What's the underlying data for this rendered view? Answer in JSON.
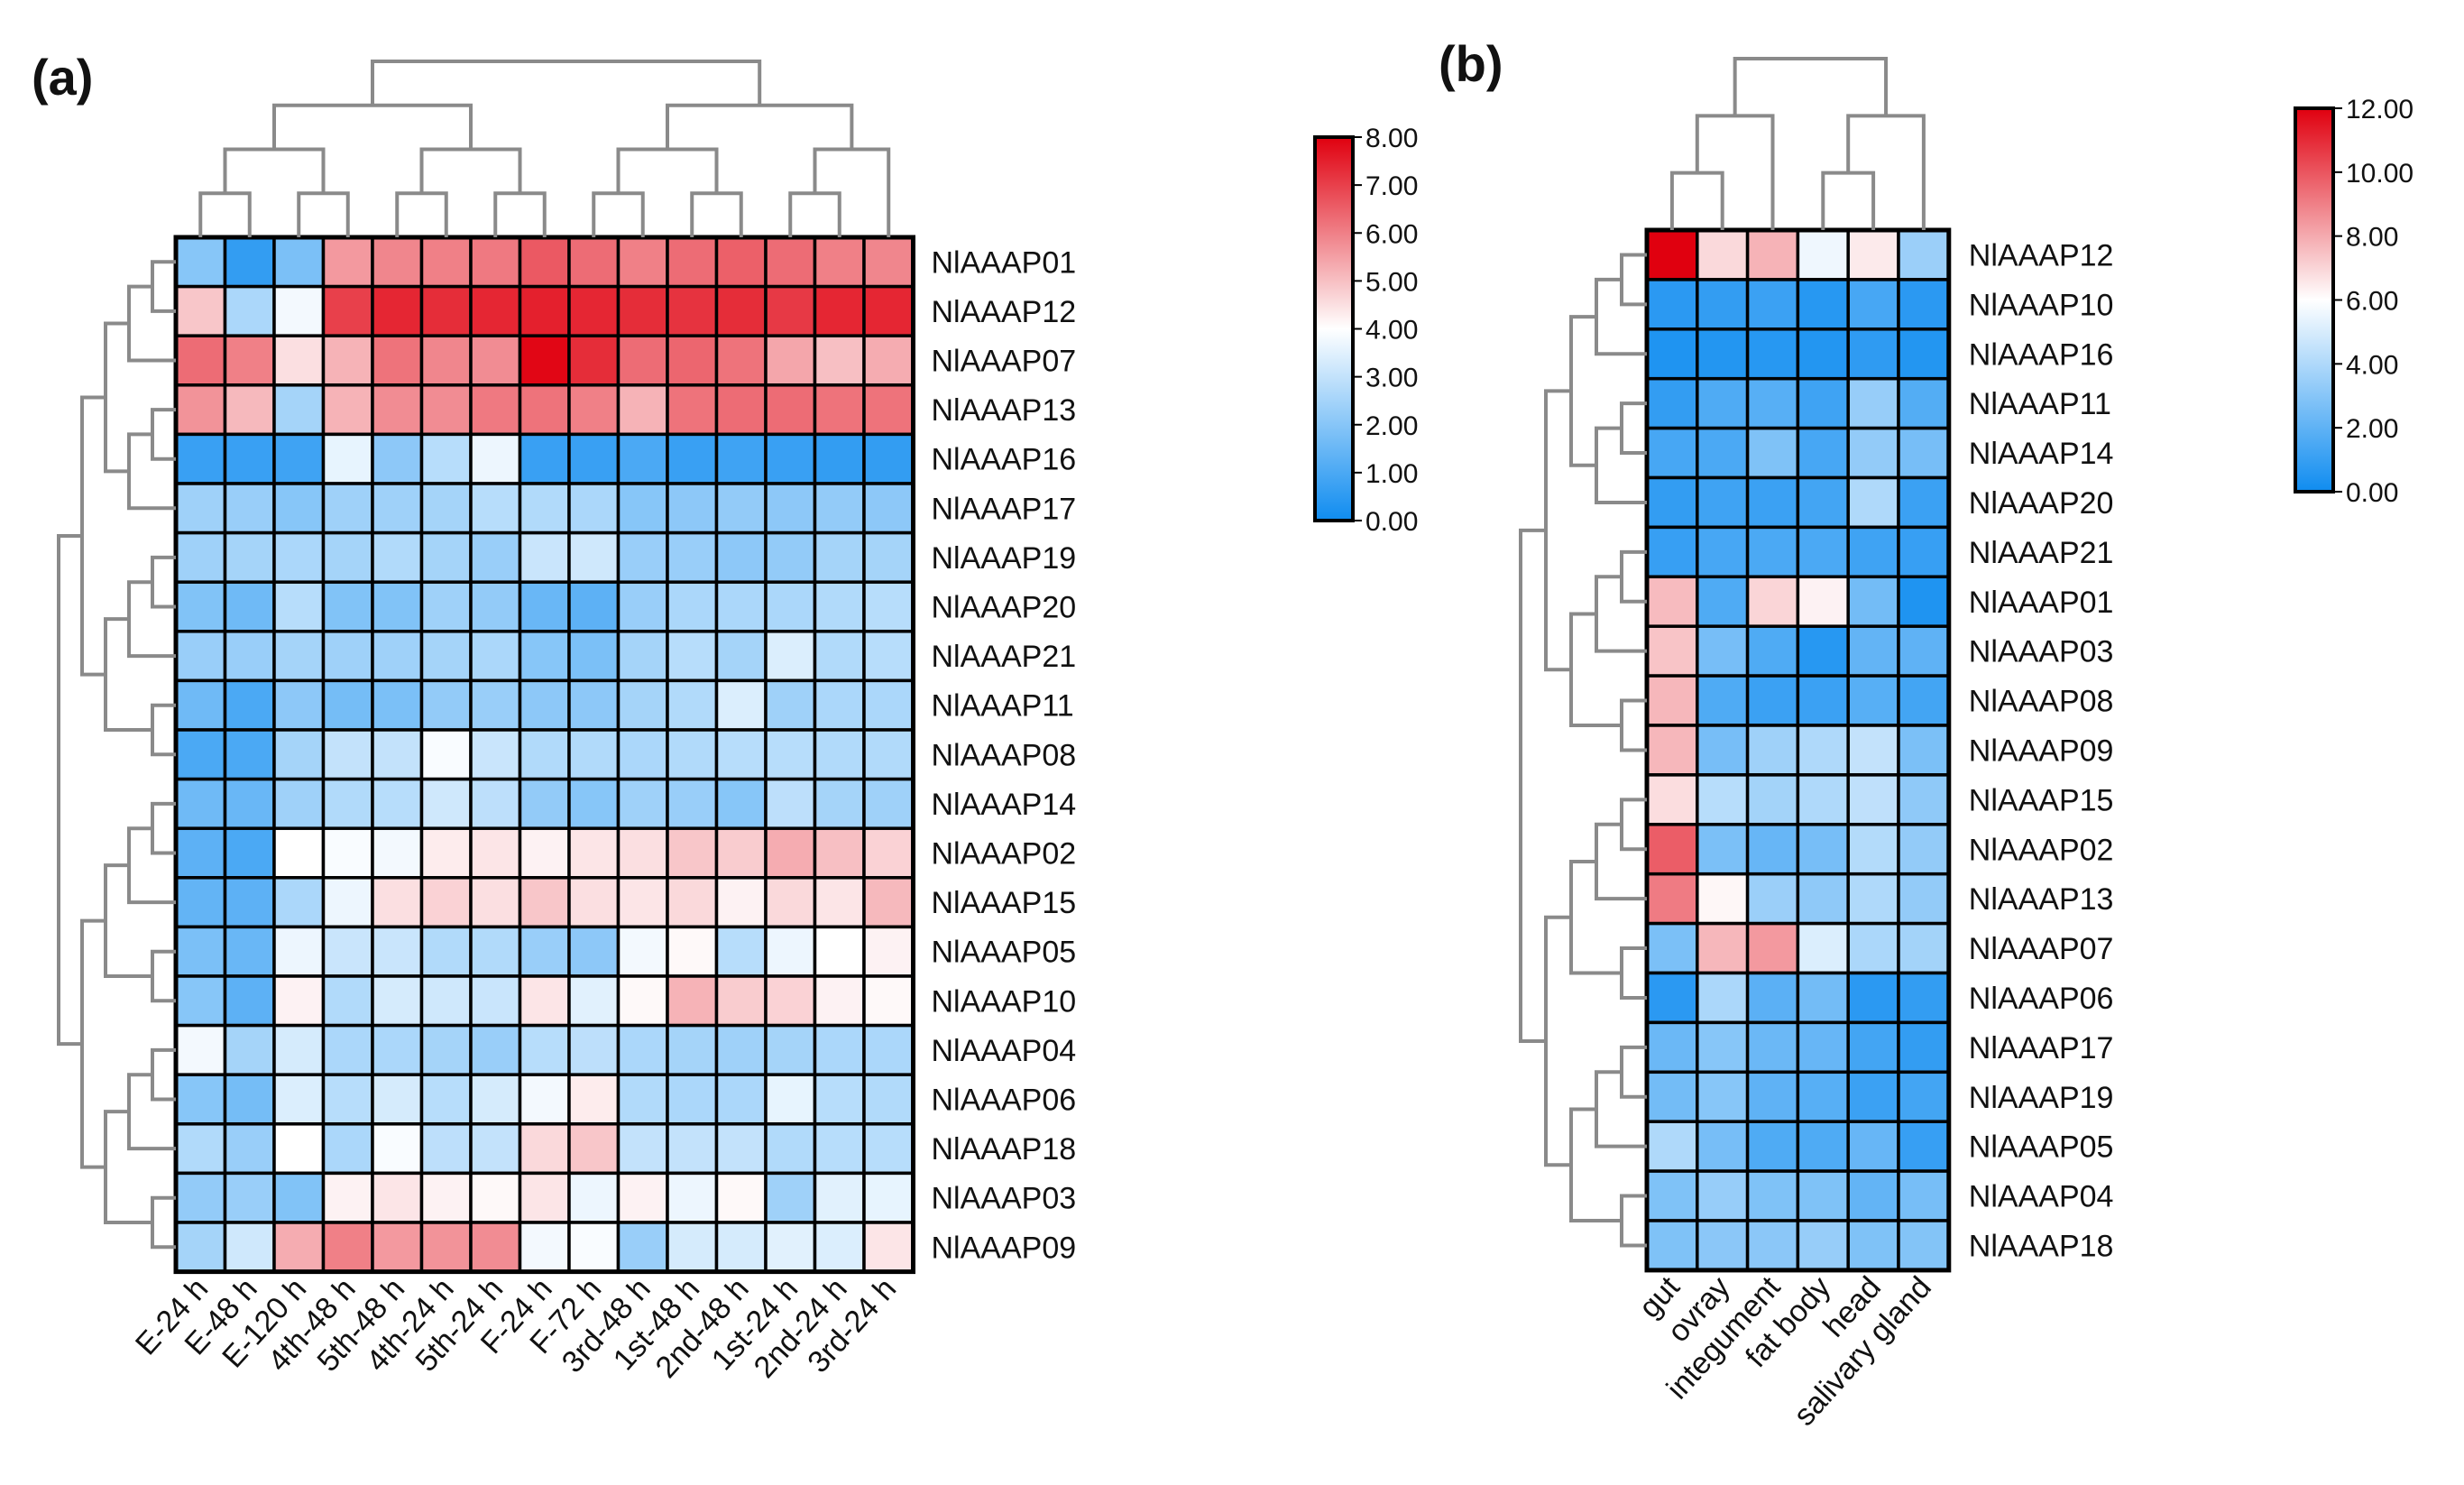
{
  "chart_data": [
    {
      "type": "heatmap",
      "panel_label": "(a)",
      "columns": [
        "E-24 h",
        "E-48 h",
        "E-120 h",
        "4th-48 h",
        "5th-48 h",
        "4th-24 h",
        "5th-24 h",
        "F-24 h",
        "F-72 h",
        "3rd-48 h",
        "1st-48 h",
        "2nd-48 h",
        "1st-24 h",
        "2nd-24 h",
        "3rd-24 h"
      ],
      "rows": [
        "NlAAAP01",
        "NlAAAP12",
        "NlAAAP07",
        "NlAAAP13",
        "NlAAAP16",
        "NlAAAP17",
        "NlAAAP19",
        "NlAAAP20",
        "NlAAAP21",
        "NlAAAP11",
        "NlAAAP08",
        "NlAAAP14",
        "NlAAAP02",
        "NlAAAP15",
        "NlAAAP05",
        "NlAAAP10",
        "NlAAAP04",
        "NlAAAP06",
        "NlAAAP18",
        "NlAAAP03",
        "NlAAAP09"
      ],
      "values": [
        [
          2.0,
          0.6,
          1.8,
          5.6,
          5.9,
          6.0,
          6.1,
          6.6,
          6.3,
          6.0,
          6.3,
          6.5,
          6.3,
          6.0,
          5.9
        ],
        [
          4.9,
          2.6,
          3.8,
          7.0,
          7.4,
          7.3,
          7.4,
          7.5,
          7.4,
          7.3,
          7.2,
          7.3,
          7.1,
          7.4,
          7.4
        ],
        [
          6.3,
          6.0,
          4.5,
          5.2,
          6.2,
          5.9,
          5.8,
          7.9,
          7.3,
          6.3,
          6.4,
          6.2,
          5.4,
          5.0,
          5.3
        ],
        [
          5.7,
          5.1,
          2.5,
          5.2,
          5.8,
          5.8,
          6.1,
          6.2,
          6.0,
          5.2,
          6.2,
          6.3,
          6.3,
          6.2,
          6.2
        ],
        [
          0.7,
          0.7,
          0.8,
          3.6,
          2.1,
          2.8,
          3.7,
          0.7,
          0.7,
          1.0,
          0.7,
          0.8,
          0.7,
          0.6,
          0.6
        ],
        [
          2.4,
          2.3,
          2.0,
          2.4,
          2.4,
          2.5,
          2.8,
          2.7,
          2.6,
          2.0,
          2.1,
          2.2,
          2.1,
          2.2,
          2.1
        ],
        [
          2.4,
          2.5,
          2.6,
          2.5,
          2.7,
          2.5,
          2.3,
          3.1,
          3.2,
          2.3,
          2.3,
          2.1,
          2.2,
          2.5,
          2.5
        ],
        [
          1.9,
          1.6,
          2.8,
          1.9,
          1.9,
          2.4,
          2.2,
          1.5,
          1.3,
          2.3,
          2.6,
          2.6,
          2.6,
          2.7,
          2.8
        ],
        [
          2.3,
          2.3,
          2.5,
          2.4,
          2.4,
          2.5,
          2.6,
          2.0,
          1.8,
          2.5,
          2.8,
          2.5,
          3.4,
          2.7,
          2.8
        ],
        [
          1.6,
          1.0,
          2.1,
          1.7,
          1.8,
          2.2,
          2.3,
          2.1,
          2.1,
          2.5,
          2.7,
          3.4,
          2.4,
          2.6,
          2.6
        ],
        [
          1.0,
          1.0,
          2.5,
          3.0,
          3.0,
          3.9,
          3.1,
          2.7,
          2.7,
          2.6,
          2.7,
          2.8,
          2.8,
          2.7,
          2.7
        ],
        [
          1.6,
          1.5,
          2.4,
          2.7,
          2.8,
          3.2,
          2.9,
          2.2,
          2.0,
          2.4,
          2.3,
          2.0,
          2.9,
          2.5,
          2.4
        ],
        [
          1.3,
          1.0,
          4.0,
          3.9,
          3.8,
          4.3,
          4.4,
          4.2,
          4.4,
          4.5,
          4.9,
          4.8,
          5.3,
          5.0,
          4.7
        ],
        [
          1.4,
          1.3,
          2.6,
          3.7,
          4.5,
          4.7,
          4.5,
          4.9,
          4.5,
          4.4,
          4.6,
          4.2,
          4.6,
          4.4,
          5.1
        ],
        [
          1.8,
          1.5,
          3.7,
          3.1,
          3.1,
          2.7,
          2.7,
          2.3,
          2.1,
          3.8,
          4.1,
          2.8,
          3.7,
          4.0,
          4.2
        ],
        [
          2.0,
          1.3,
          4.2,
          2.7,
          3.3,
          3.2,
          3.1,
          4.4,
          3.5,
          4.1,
          5.2,
          4.8,
          4.7,
          4.2,
          4.1
        ],
        [
          3.8,
          2.5,
          3.3,
          2.6,
          2.6,
          2.5,
          2.3,
          2.8,
          2.9,
          2.6,
          2.5,
          2.4,
          2.5,
          2.6,
          2.6
        ],
        [
          2.0,
          1.7,
          3.4,
          2.8,
          3.3,
          2.8,
          3.3,
          3.8,
          4.3,
          2.7,
          2.6,
          2.6,
          3.6,
          2.8,
          2.7
        ],
        [
          2.7,
          2.3,
          4.0,
          2.6,
          3.9,
          2.9,
          3.0,
          4.6,
          4.9,
          3.0,
          3.0,
          3.0,
          2.7,
          2.8,
          2.8
        ],
        [
          2.2,
          2.3,
          1.9,
          4.2,
          4.4,
          4.2,
          4.1,
          4.4,
          3.7,
          4.2,
          3.7,
          4.1,
          2.4,
          3.5,
          3.6
        ],
        [
          2.5,
          3.2,
          5.3,
          6.0,
          5.6,
          5.7,
          5.8,
          3.8,
          3.9,
          2.3,
          3.3,
          3.3,
          3.5,
          3.4,
          4.4
        ]
      ],
      "colorbar": {
        "min": 0,
        "max": 8,
        "ticks": [
          "0.00",
          "1.00",
          "2.00",
          "3.00",
          "4.00",
          "5.00",
          "6.00",
          "7.00",
          "8.00"
        ]
      },
      "colors": {
        "low": "#0f8cf0",
        "mid": "#ffffff",
        "high": "#e0000f"
      }
    },
    {
      "type": "heatmap",
      "panel_label": "(b)",
      "columns": [
        "gut",
        "ovray",
        "integument",
        "fat body",
        "head",
        "salivary gland"
      ],
      "rows": [
        "NlAAAP12",
        "NlAAAP10",
        "NlAAAP16",
        "NlAAAP11",
        "NlAAAP14",
        "NlAAAP20",
        "NlAAAP21",
        "NlAAAP01",
        "NlAAAP03",
        "NlAAAP08",
        "NlAAAP09",
        "NlAAAP15",
        "NlAAAP02",
        "NlAAAP13",
        "NlAAAP07",
        "NlAAAP06",
        "NlAAAP17",
        "NlAAAP19",
        "NlAAAP05",
        "NlAAAP04",
        "NlAAAP18"
      ],
      "values": [
        [
          12.0,
          6.9,
          7.8,
          5.6,
          6.5,
          3.5
        ],
        [
          0.7,
          0.9,
          1.1,
          0.6,
          1.4,
          0.7
        ],
        [
          0.4,
          0.5,
          0.6,
          0.5,
          0.8,
          0.5
        ],
        [
          0.9,
          1.6,
          1.8,
          1.2,
          3.4,
          1.7
        ],
        [
          1.4,
          1.5,
          2.8,
          1.4,
          3.3,
          2.6
        ],
        [
          0.9,
          1.2,
          1.1,
          1.3,
          4.0,
          1.1
        ],
        [
          1.0,
          1.4,
          1.5,
          1.5,
          1.2,
          1.0
        ],
        [
          7.6,
          1.6,
          7.0,
          6.3,
          2.5,
          0.4
        ],
        [
          7.4,
          2.6,
          1.6,
          0.6,
          2.1,
          2.0
        ],
        [
          7.7,
          1.6,
          1.1,
          1.1,
          1.8,
          1.3
        ],
        [
          7.7,
          2.6,
          3.6,
          4.0,
          4.5,
          2.7
        ],
        [
          6.8,
          4.2,
          3.7,
          4.0,
          4.4,
          3.2
        ],
        [
          9.8,
          2.7,
          2.2,
          2.6,
          4.1,
          3.3
        ],
        [
          9.1,
          6.2,
          3.5,
          3.2,
          4.0,
          3.3
        ],
        [
          2.7,
          7.7,
          8.4,
          5.1,
          3.9,
          3.7
        ],
        [
          0.7,
          3.9,
          1.9,
          2.5,
          0.7,
          0.9
        ],
        [
          2.3,
          3.0,
          2.3,
          2.2,
          1.3,
          0.9
        ],
        [
          2.5,
          3.0,
          2.0,
          1.8,
          1.1,
          1.3
        ],
        [
          4.0,
          2.6,
          1.6,
          1.6,
          2.2,
          1.0
        ],
        [
          2.8,
          3.4,
          2.8,
          2.8,
          2.1,
          2.6
        ],
        [
          2.8,
          3.1,
          3.1,
          3.4,
          2.8,
          2.9
        ]
      ],
      "colorbar": {
        "min": 0,
        "max": 12,
        "ticks": [
          "0.00",
          "2.00",
          "4.00",
          "6.00",
          "8.00",
          "10.00",
          "12.00"
        ]
      },
      "colors": {
        "low": "#0f8cf0",
        "mid": "#ffffff",
        "high": "#e0000f"
      }
    }
  ]
}
